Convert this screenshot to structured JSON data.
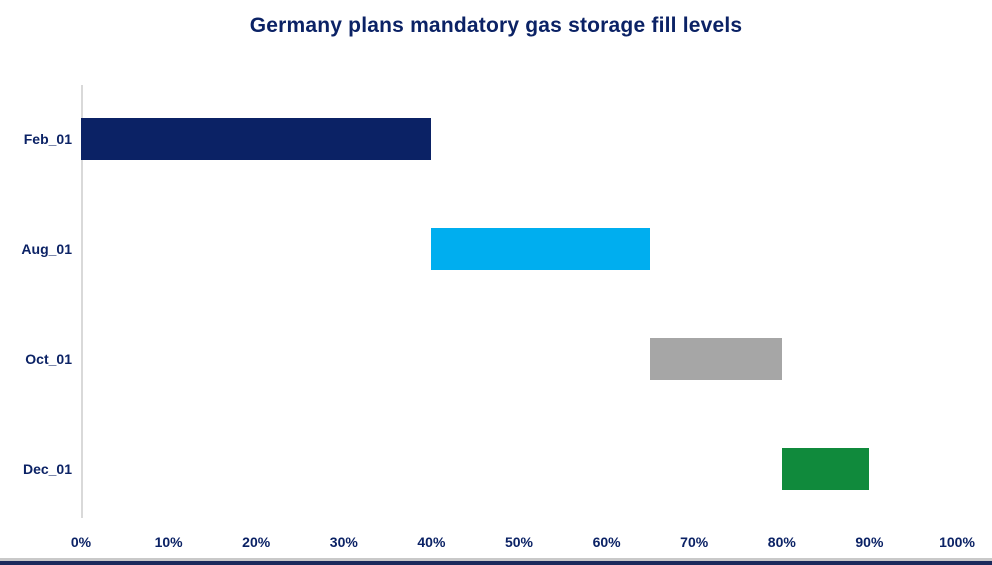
{
  "page": {
    "background": "#FFFFFF"
  },
  "chart_data": {
    "type": "bar",
    "orientation": "horizontal",
    "title": "Germany plans mandatory gas storage fill levels",
    "title_color": "#0B2265",
    "text_color": "#0B2265",
    "axis_line_color": "#D9D9D9",
    "grid": false,
    "legend": null,
    "xlim": [
      0,
      100
    ],
    "x_ticks": [
      "0%",
      "10%",
      "20%",
      "30%",
      "40%",
      "50%",
      "60%",
      "70%",
      "80%",
      "90%",
      "100%"
    ],
    "x_tick_values": [
      0,
      10,
      20,
      30,
      40,
      50,
      60,
      70,
      80,
      90,
      100
    ],
    "categories": [
      "Feb_01",
      "Aug_01",
      "Oct_01",
      "Dec_01"
    ],
    "bars": [
      {
        "label": "Feb_01",
        "start": 0,
        "end": 40,
        "color": "#0B2265"
      },
      {
        "label": "Aug_01",
        "start": 40,
        "end": 65,
        "color": "#00AEEF"
      },
      {
        "label": "Oct_01",
        "start": 65,
        "end": 80,
        "color": "#A6A6A6"
      },
      {
        "label": "Dec_01",
        "start": 80,
        "end": 90,
        "color": "#108A3C"
      }
    ],
    "bottom_rule_colors": [
      "#C9C9C9",
      "#1A2A5C"
    ]
  }
}
